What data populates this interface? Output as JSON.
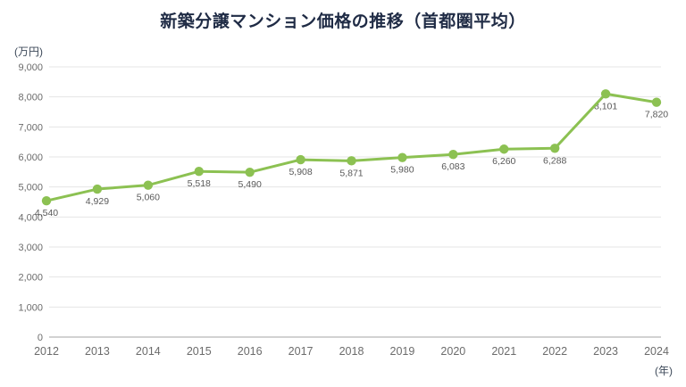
{
  "chart_data": {
    "type": "line",
    "title": "新築分譲マンション価格の推移（首都圏平均）",
    "y_unit": "(万円)",
    "x_unit": "(年)",
    "categories": [
      "2012",
      "2013",
      "2014",
      "2015",
      "2016",
      "2017",
      "2018",
      "2019",
      "2020",
      "2021",
      "2022",
      "2023",
      "2024"
    ],
    "values": [
      4540,
      4929,
      5060,
      5518,
      5490,
      5908,
      5871,
      5980,
      6083,
      6260,
      6288,
      8101,
      7820
    ],
    "ylim": [
      0,
      9000
    ],
    "ytick_step": 1000,
    "grid": true,
    "legend": "none",
    "colors": {
      "line": "#8CC152",
      "point": "#8CC152",
      "title": "#1F2B45",
      "axis_label": "#6B6B6B",
      "data_label": "#595959",
      "unit_label": "#3E4A5A",
      "gridline": "#E4E4E4",
      "zeroline": "#C4C4C4"
    }
  }
}
